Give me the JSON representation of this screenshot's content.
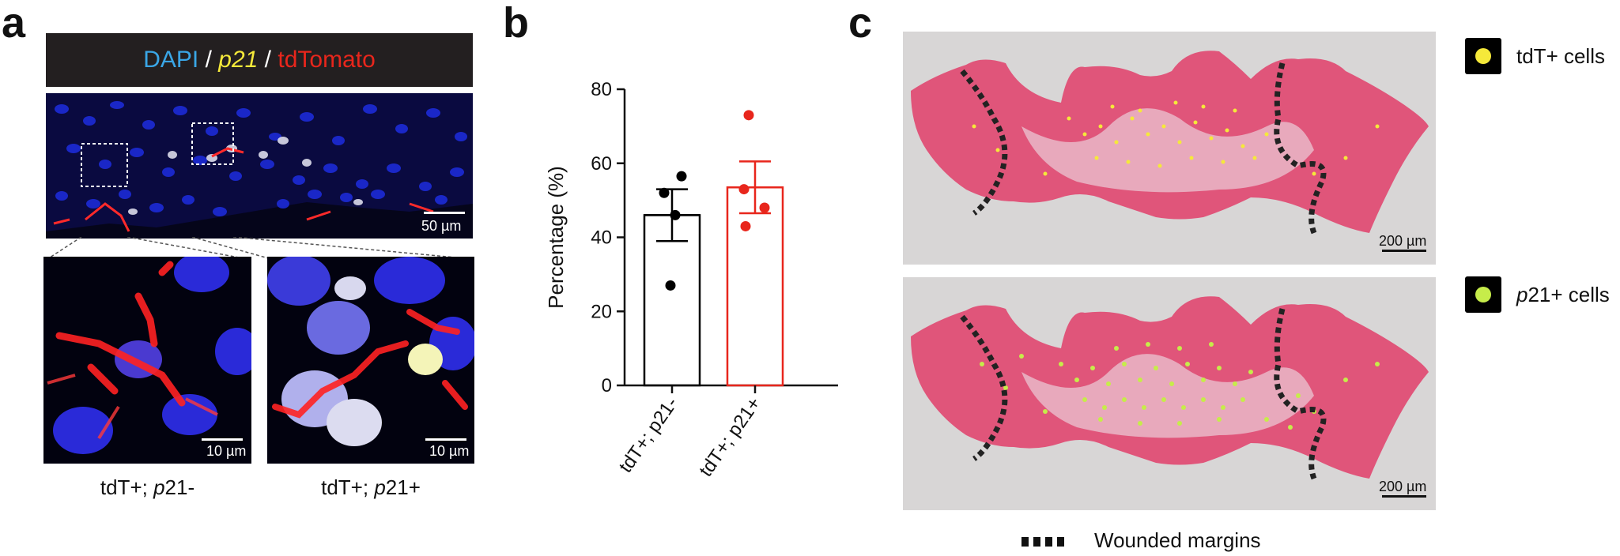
{
  "panel_a": {
    "letter": "a",
    "header": {
      "dapi": "DAPI",
      "sep1": " / ",
      "p21": "p21",
      "sep2": " / ",
      "tdtomato": "tdTomato",
      "colors": {
        "bg": "#231f20",
        "dapi": "#3aa6e6",
        "p21": "#f5e93a",
        "tdtomato": "#e8261c",
        "sep": "#ffffff"
      }
    },
    "top_scale": "50 µm",
    "left_scale": "10 µm",
    "right_scale": "10 µm",
    "left_caption_prefix": "tdT+; ",
    "left_caption_italic": "p",
    "left_caption_suffix": "21-",
    "right_caption_prefix": "tdT+; ",
    "right_caption_italic": "p",
    "right_caption_suffix": "21+"
  },
  "panel_b": {
    "letter": "b",
    "chart_data": {
      "type": "bar",
      "categories": [
        "tdT+; p21-",
        "tdT+; p21+"
      ],
      "values": [
        46,
        53.5
      ],
      "error": [
        7,
        7
      ],
      "points": [
        [
          52,
          56.5,
          46,
          27
        ],
        [
          73,
          53,
          48,
          43
        ]
      ],
      "colors": [
        "#000000",
        "#e8261c"
      ],
      "ylabel": "Percentage (%)",
      "ylim": [
        0,
        80
      ],
      "yticks": [
        "0",
        "20",
        "40",
        "60",
        "80"
      ]
    }
  },
  "panel_c": {
    "letter": "c",
    "top_scale": "200 µm",
    "bottom_scale": "200 µm",
    "legend_tdt_label": "tdT+ cells",
    "legend_p21_italic": "p",
    "legend_p21_label": "21+ cells",
    "legend_margins_label": "Wounded margins",
    "colors": {
      "tdt_dot": "#f5e93a",
      "p21_dot": "#c6ec4a",
      "tissue": "#e0557a"
    }
  }
}
